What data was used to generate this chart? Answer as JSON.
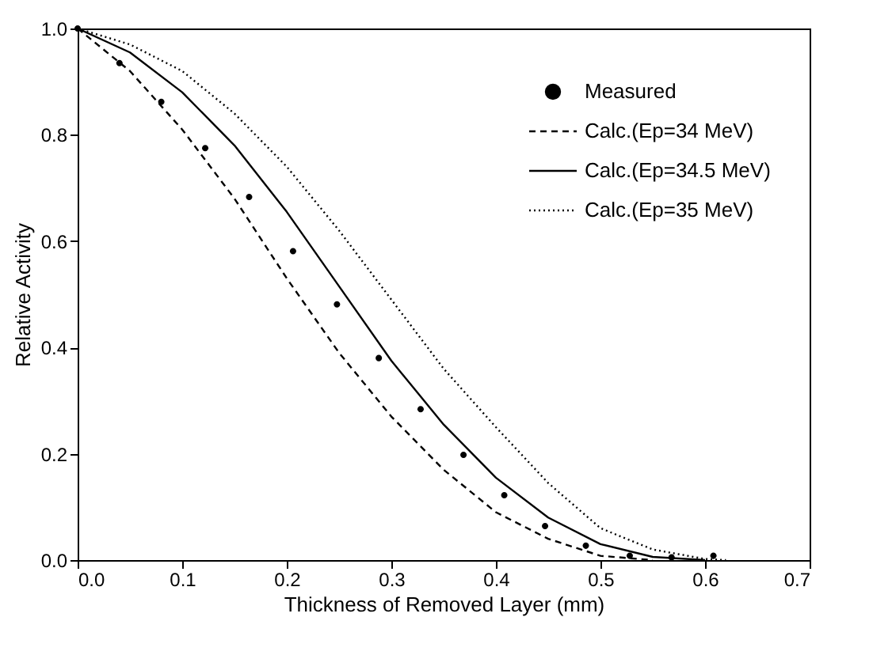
{
  "chart_data": {
    "type": "line",
    "xlabel": "Thickness of Removed Layer (mm)",
    "ylabel": "Relative Activity",
    "xlim": [
      0,
      0.7
    ],
    "ylim": [
      0,
      1.0
    ],
    "xticks": [
      {
        "value": 0,
        "label": "0.0"
      },
      0.1,
      0.2,
      0.3,
      0.4,
      0.5,
      0.6,
      0.7
    ],
    "yticks": [
      {
        "value": 0,
        "label": "0.0"
      },
      0.2,
      0.4,
      0.6,
      0.8,
      {
        "value": 1,
        "label": "1.0"
      }
    ],
    "grid": false,
    "legend": "top right",
    "series": [
      {
        "name": "Measured",
        "type": "scatter",
        "marker": "circle",
        "color": "#000000",
        "x": [
          0,
          0.04,
          0.08,
          0.122,
          0.164,
          0.206,
          0.248,
          0.288,
          0.328,
          0.369,
          0.408,
          0.447,
          0.486,
          0.528,
          0.568,
          0.608
        ],
        "values": [
          1.0,
          0.935,
          0.862,
          0.775,
          0.683,
          0.581,
          0.481,
          0.38,
          0.284,
          0.198,
          0.122,
          0.064,
          0.027,
          0.008,
          0.005,
          0.008
        ]
      },
      {
        "name": "Calc.(Ep=34 MeV)",
        "type": "line",
        "line_style": "dashed",
        "color": "#000000",
        "x": [
          0,
          0.05,
          0.1,
          0.15,
          0.2,
          0.25,
          0.3,
          0.35,
          0.4,
          0.45,
          0.5,
          0.55
        ],
        "values": [
          1.0,
          0.92,
          0.81,
          0.68,
          0.53,
          0.39,
          0.27,
          0.17,
          0.09,
          0.04,
          0.008,
          0
        ]
      },
      {
        "name": "Calc.(Ep=34.5 MeV)",
        "type": "line",
        "line_style": "solid",
        "color": "#000000",
        "x": [
          0,
          0.05,
          0.1,
          0.15,
          0.2,
          0.25,
          0.3,
          0.35,
          0.4,
          0.45,
          0.5,
          0.55,
          0.6
        ],
        "values": [
          1.0,
          0.955,
          0.88,
          0.78,
          0.655,
          0.515,
          0.375,
          0.255,
          0.155,
          0.08,
          0.03,
          0.006,
          0
        ]
      },
      {
        "name": "Calc.(Ep=35 MeV)",
        "type": "line",
        "line_style": "dotted",
        "color": "#000000",
        "x": [
          0,
          0.05,
          0.1,
          0.15,
          0.2,
          0.25,
          0.3,
          0.35,
          0.4,
          0.45,
          0.5,
          0.55,
          0.6,
          0.62
        ],
        "values": [
          1.0,
          0.97,
          0.92,
          0.84,
          0.74,
          0.62,
          0.49,
          0.36,
          0.25,
          0.145,
          0.06,
          0.02,
          0.002,
          0
        ]
      }
    ]
  }
}
